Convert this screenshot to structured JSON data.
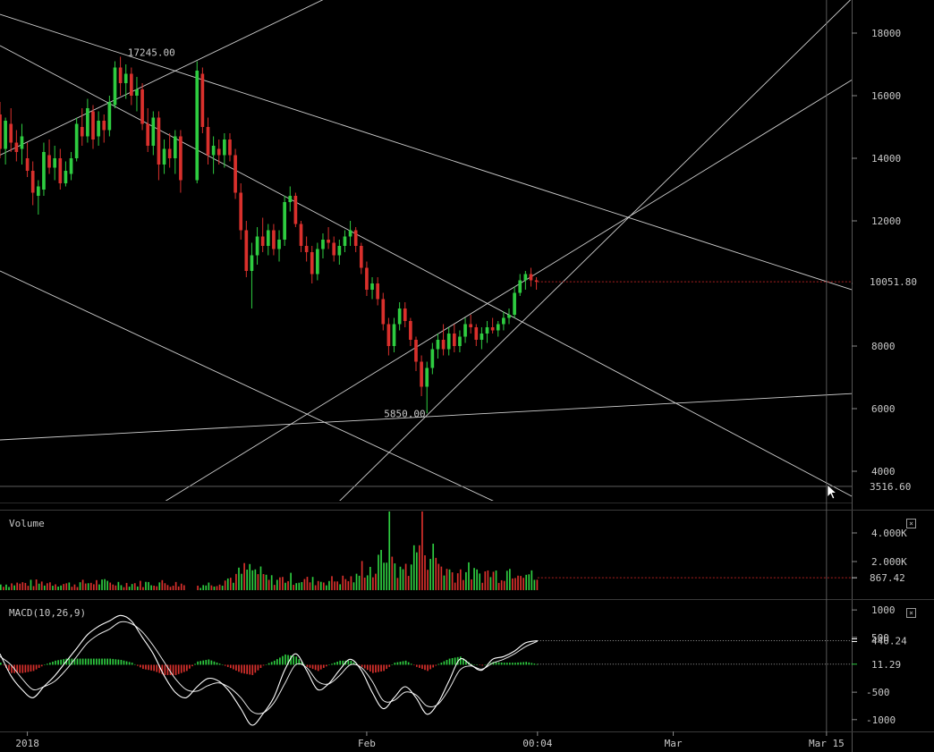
{
  "chart_data": [
    {
      "type": "candlestick",
      "pane": "price",
      "title": "",
      "yticks": [
        4000,
        6000,
        8000,
        10000,
        12000,
        14000,
        16000,
        18000
      ],
      "ylim": [
        3000,
        19000
      ],
      "xticks": [
        {
          "label": "2018",
          "x": 0
        },
        {
          "label": "Feb",
          "x": 31
        },
        {
          "label": "00:04",
          "x": 46.6
        },
        {
          "label": "Mar",
          "x": 59
        },
        {
          "label": "Mar 15",
          "x": 73
        }
      ],
      "xlim": [
        -2.5,
        75.3
      ],
      "annotations": [
        {
          "text": "17245.00",
          "x": 9,
          "y": 17245
        },
        {
          "text": "5850.00",
          "x": 36.5,
          "y": 5850
        }
      ],
      "last_price": "10051.80",
      "crosshair_price": "3516.60",
      "trendlines": [
        {
          "x1": -2.5,
          "y1": 18600,
          "x2": 75.3,
          "y2": 9800
        },
        {
          "x1": -2.5,
          "y1": 17600,
          "x2": 75.3,
          "y2": 3200
        },
        {
          "x1": -2.5,
          "y1": 10400,
          "x2": 44.7,
          "y2": 2700
        },
        {
          "x1": -2.5,
          "y1": 5000,
          "x2": 75.3,
          "y2": 6480
        },
        {
          "x1": 11,
          "y1": 2700,
          "x2": 75.3,
          "y2": 16500
        },
        {
          "x1": 27.5,
          "y1": 2700,
          "x2": 75.3,
          "y2": 19100
        },
        {
          "x1": -2.5,
          "y1": 14100,
          "x2": 27.2,
          "y2": 19100
        }
      ],
      "candles": [
        [
          -2.5,
          15400,
          15800,
          14000,
          14300
        ],
        [
          -2.0,
          14300,
          15300,
          13800,
          15200
        ],
        [
          -1.5,
          15100,
          15600,
          14200,
          14500
        ],
        [
          -1.0,
          14500,
          14900,
          13900,
          14200
        ],
        [
          -0.5,
          14300,
          15100,
          13800,
          14700
        ],
        [
          0,
          14000,
          14500,
          13400,
          13600
        ],
        [
          0.5,
          13600,
          13900,
          12500,
          12900
        ],
        [
          1.0,
          12800,
          13300,
          12200,
          13100
        ],
        [
          1.5,
          13000,
          14500,
          12800,
          14200
        ],
        [
          2.0,
          14100,
          14600,
          13500,
          13700
        ],
        [
          2.5,
          13700,
          14400,
          13300,
          14000
        ],
        [
          3.0,
          14000,
          14300,
          13000,
          13200
        ],
        [
          3.5,
          13200,
          13900,
          13100,
          13600
        ],
        [
          4.0,
          13500,
          14200,
          13300,
          14000
        ],
        [
          4.5,
          14000,
          15300,
          13900,
          15100
        ],
        [
          5.0,
          15000,
          15600,
          14400,
          14700
        ],
        [
          5.5,
          14700,
          15900,
          14500,
          15600
        ],
        [
          6.0,
          15500,
          15700,
          14300,
          14600
        ],
        [
          6.5,
          14700,
          15500,
          14400,
          15200
        ],
        [
          7.0,
          15200,
          15400,
          14500,
          14900
        ],
        [
          7.5,
          14900,
          16000,
          14700,
          15800
        ],
        [
          8.0,
          15700,
          17100,
          15600,
          16900
        ],
        [
          8.5,
          16900,
          17245,
          16000,
          16400
        ],
        [
          9.0,
          16400,
          17000,
          15900,
          16700
        ],
        [
          9.5,
          16700,
          16900,
          15700,
          16000
        ],
        [
          10.0,
          16000,
          16600,
          15500,
          16200
        ],
        [
          10.5,
          16200,
          16400,
          14900,
          15100
        ],
        [
          11.0,
          15100,
          15600,
          14200,
          14400
        ],
        [
          11.5,
          14400,
          15500,
          14100,
          15300
        ],
        [
          12.0,
          15300,
          15500,
          13300,
          13800
        ],
        [
          12.5,
          13800,
          14600,
          13500,
          14300
        ],
        [
          13.0,
          14300,
          14800,
          13700,
          14000
        ],
        [
          13.5,
          14000,
          14900,
          13500,
          14700
        ],
        [
          14.0,
          14700,
          14900,
          12900,
          13300
        ],
        [
          15.5,
          13300,
          17100,
          13200,
          16800
        ],
        [
          16.0,
          16700,
          16900,
          14800,
          15000
        ],
        [
          16.5,
          15000,
          15300,
          13800,
          14100
        ],
        [
          17.0,
          14100,
          14700,
          13500,
          14400
        ],
        [
          17.5,
          14300,
          14600,
          13800,
          14100
        ],
        [
          18.0,
          14100,
          14800,
          13700,
          14600
        ],
        [
          18.5,
          14600,
          14800,
          13900,
          14100
        ],
        [
          19.0,
          14100,
          14300,
          12700,
          12900
        ],
        [
          19.5,
          12900,
          13200,
          11400,
          11700
        ],
        [
          20.0,
          11700,
          12000,
          10200,
          10400
        ],
        [
          20.5,
          10400,
          11300,
          9200,
          10900
        ],
        [
          21.0,
          10900,
          11800,
          10600,
          11500
        ],
        [
          21.5,
          11500,
          12100,
          11000,
          11200
        ],
        [
          22.0,
          11200,
          11900,
          10900,
          11700
        ],
        [
          22.5,
          11700,
          11900,
          10900,
          11100
        ],
        [
          23.0,
          11100,
          11700,
          10700,
          11400
        ],
        [
          23.5,
          11400,
          12800,
          11200,
          12600
        ],
        [
          24.0,
          12600,
          13100,
          12300,
          12800
        ],
        [
          24.5,
          12800,
          12900,
          11800,
          11900
        ],
        [
          25.0,
          11900,
          12000,
          11000,
          11200
        ],
        [
          25.5,
          11200,
          11500,
          10700,
          11000
        ],
        [
          26.0,
          11000,
          11200,
          10000,
          10300
        ],
        [
          26.5,
          10300,
          11300,
          10100,
          11100
        ],
        [
          27.0,
          11100,
          11600,
          10800,
          11400
        ],
        [
          27.5,
          11400,
          11800,
          11100,
          11300
        ],
        [
          28.0,
          11300,
          11500,
          10700,
          10900
        ],
        [
          28.5,
          10900,
          11400,
          10600,
          11200
        ],
        [
          29.0,
          11200,
          11700,
          11000,
          11500
        ],
        [
          29.5,
          11500,
          12000,
          11200,
          11700
        ],
        [
          30.0,
          11700,
          11800,
          11000,
          11200
        ],
        [
          30.5,
          11200,
          11300,
          10300,
          10500
        ],
        [
          31.0,
          10500,
          10700,
          9600,
          9800
        ],
        [
          31.5,
          9800,
          10200,
          9500,
          10000
        ],
        [
          32.0,
          10000,
          10200,
          9300,
          9500
        ],
        [
          32.5,
          9500,
          9700,
          8500,
          8700
        ],
        [
          33.0,
          8700,
          8900,
          7700,
          8000
        ],
        [
          33.5,
          8000,
          8900,
          7800,
          8700
        ],
        [
          34.0,
          8700,
          9400,
          8500,
          9200
        ],
        [
          34.5,
          9200,
          9400,
          8600,
          8800
        ],
        [
          35.0,
          8800,
          8900,
          8000,
          8200
        ],
        [
          35.5,
          8200,
          8300,
          7200,
          7500
        ],
        [
          36.0,
          7500,
          7700,
          6400,
          6700
        ],
        [
          36.5,
          6700,
          7500,
          5850,
          7300
        ],
        [
          37.0,
          7300,
          8100,
          7100,
          7900
        ],
        [
          37.5,
          7900,
          8400,
          7600,
          8200
        ],
        [
          38.0,
          8200,
          8700,
          7700,
          7900
        ],
        [
          38.5,
          7900,
          8600,
          7700,
          8400
        ],
        [
          39.0,
          8400,
          8700,
          7800,
          8000
        ],
        [
          39.5,
          8000,
          8500,
          7800,
          8300
        ],
        [
          40.0,
          8300,
          8900,
          8100,
          8700
        ],
        [
          40.5,
          8700,
          9000,
          8400,
          8600
        ],
        [
          41.0,
          8600,
          8700,
          8000,
          8200
        ],
        [
          41.5,
          8200,
          8600,
          7900,
          8400
        ],
        [
          42.0,
          8400,
          8800,
          8100,
          8600
        ],
        [
          42.5,
          8600,
          8900,
          8400,
          8500
        ],
        [
          43.0,
          8500,
          8800,
          8300,
          8700
        ],
        [
          43.5,
          8700,
          9100,
          8500,
          8900
        ],
        [
          44.0,
          8900,
          9200,
          8700,
          9000
        ],
        [
          44.5,
          9000,
          9900,
          8900,
          9700
        ],
        [
          45.0,
          9700,
          10300,
          9600,
          10100
        ],
        [
          45.5,
          10100,
          10400,
          9800,
          10300
        ],
        [
          46.0,
          10300,
          10500,
          9900,
          10100
        ],
        [
          46.5,
          10100,
          10200,
          9800,
          10051.8
        ]
      ]
    },
    {
      "type": "bar",
      "pane": "volume",
      "title": "Volume",
      "yticks": [
        "2.000K",
        "4.000K"
      ],
      "ylim": [
        0,
        5500
      ],
      "last_value": "867.42",
      "volume_profile": [
        [
          -2.5,
          500
        ],
        [
          0,
          600
        ],
        [
          2,
          650
        ],
        [
          4,
          500
        ],
        [
          6,
          700
        ],
        [
          8,
          600
        ],
        [
          10,
          550
        ],
        [
          12,
          650
        ],
        [
          14,
          500
        ],
        [
          15.5,
          400
        ],
        [
          17,
          600
        ],
        [
          19,
          1200
        ],
        [
          20,
          1800
        ],
        [
          21,
          1500
        ],
        [
          22,
          900
        ],
        [
          24,
          1000
        ],
        [
          26,
          800
        ],
        [
          28,
          850
        ],
        [
          30,
          1000
        ],
        [
          30.5,
          1900
        ],
        [
          31,
          2200
        ],
        [
          31.5,
          1500
        ],
        [
          32,
          2100
        ],
        [
          32.5,
          3200
        ],
        [
          33,
          5000
        ],
        [
          33.5,
          2200
        ],
        [
          34,
          1500
        ],
        [
          35,
          2600
        ],
        [
          35.5,
          3500
        ],
        [
          36,
          4900
        ],
        [
          36.5,
          3600
        ],
        [
          37,
          3000
        ],
        [
          37.5,
          2400
        ],
        [
          38,
          1800
        ],
        [
          39,
          1500
        ],
        [
          40,
          1700
        ],
        [
          41,
          1300
        ],
        [
          42,
          1500
        ],
        [
          43,
          1400
        ],
        [
          44,
          1800
        ],
        [
          45,
          2200
        ],
        [
          46,
          1200
        ],
        [
          46.6,
          900
        ]
      ]
    },
    {
      "type": "line",
      "pane": "macd",
      "title": "MACD(10,26,9)",
      "yticks": [
        -1000,
        -500,
        500,
        1000
      ],
      "ylim": [
        -1150,
        1100
      ],
      "series": [
        {
          "label": "440.24",
          "role": "macd"
        },
        {
          "label": "11.29",
          "role": "histogram"
        }
      ],
      "macd_points": [
        [
          -2.5,
          200
        ],
        [
          -1.5,
          -200
        ],
        [
          -0.5,
          -450
        ],
        [
          0.5,
          -600
        ],
        [
          1.5,
          -400
        ],
        [
          2.5,
          -200
        ],
        [
          3.5,
          50
        ],
        [
          4.5,
          300
        ],
        [
          5.5,
          550
        ],
        [
          6.5,
          700
        ],
        [
          7.5,
          800
        ],
        [
          8.5,
          900
        ],
        [
          9.5,
          800
        ],
        [
          10.5,
          500
        ],
        [
          11.5,
          200
        ],
        [
          12.5,
          -200
        ],
        [
          13.5,
          -500
        ],
        [
          14.5,
          -600
        ],
        [
          15.5,
          -400
        ],
        [
          16.5,
          -250
        ],
        [
          17.5,
          -300
        ],
        [
          18.5,
          -500
        ],
        [
          19.5,
          -800
        ],
        [
          20.5,
          -1100
        ],
        [
          21.5,
          -900
        ],
        [
          22.5,
          -600
        ],
        [
          23.5,
          -100
        ],
        [
          24.5,
          200
        ],
        [
          25.5,
          -100
        ],
        [
          26.5,
          -450
        ],
        [
          27.5,
          -350
        ],
        [
          28.5,
          -100
        ],
        [
          29.5,
          100
        ],
        [
          30.5,
          -100
        ],
        [
          31.5,
          -500
        ],
        [
          32.5,
          -800
        ],
        [
          33.5,
          -600
        ],
        [
          34.5,
          -400
        ],
        [
          35.5,
          -600
        ],
        [
          36.5,
          -900
        ],
        [
          37.5,
          -700
        ],
        [
          38.5,
          -300
        ],
        [
          39.5,
          100
        ],
        [
          40.5,
          0
        ],
        [
          41.5,
          -100
        ],
        [
          42.5,
          100
        ],
        [
          43.5,
          150
        ],
        [
          44.5,
          250
        ],
        [
          45.5,
          400
        ],
        [
          46.6,
          440.24
        ]
      ],
      "signal_points": [
        [
          -2.5,
          150
        ],
        [
          -1.5,
          0
        ],
        [
          -0.5,
          -250
        ],
        [
          0.5,
          -450
        ],
        [
          1.5,
          -400
        ],
        [
          2.5,
          -300
        ],
        [
          3.5,
          -100
        ],
        [
          4.5,
          150
        ],
        [
          5.5,
          400
        ],
        [
          6.5,
          550
        ],
        [
          7.5,
          650
        ],
        [
          8.5,
          780
        ],
        [
          9.5,
          750
        ],
        [
          10.5,
          600
        ],
        [
          11.5,
          350
        ],
        [
          12.5,
          50
        ],
        [
          13.5,
          -250
        ],
        [
          14.5,
          -450
        ],
        [
          15.5,
          -480
        ],
        [
          16.5,
          -380
        ],
        [
          17.5,
          -330
        ],
        [
          18.5,
          -420
        ],
        [
          19.5,
          -600
        ],
        [
          20.5,
          -850
        ],
        [
          21.5,
          -880
        ],
        [
          22.5,
          -700
        ],
        [
          23.5,
          -350
        ],
        [
          24.5,
          0
        ],
        [
          25.5,
          -50
        ],
        [
          26.5,
          -300
        ],
        [
          27.5,
          -350
        ],
        [
          28.5,
          -200
        ],
        [
          29.5,
          0
        ],
        [
          30.5,
          -50
        ],
        [
          31.5,
          -300
        ],
        [
          32.5,
          -650
        ],
        [
          33.5,
          -650
        ],
        [
          34.5,
          -500
        ],
        [
          35.5,
          -550
        ],
        [
          36.5,
          -750
        ],
        [
          37.5,
          -720
        ],
        [
          38.5,
          -450
        ],
        [
          39.5,
          -100
        ],
        [
          40.5,
          -20
        ],
        [
          41.5,
          -80
        ],
        [
          42.5,
          30
        ],
        [
          43.5,
          100
        ],
        [
          44.5,
          200
        ],
        [
          45.5,
          330
        ],
        [
          46.6,
          429
        ]
      ]
    }
  ]
}
